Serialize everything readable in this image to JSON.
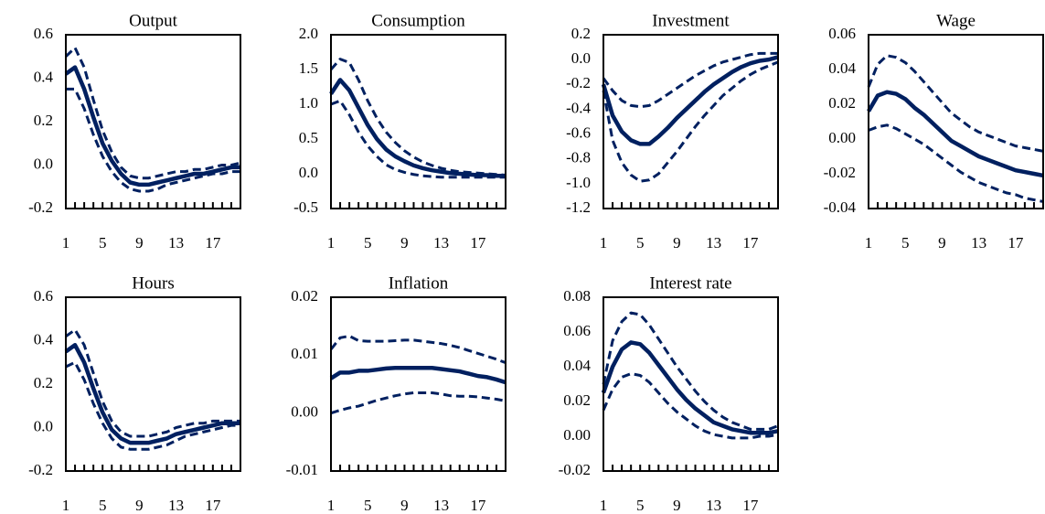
{
  "chart_data": [
    {
      "type": "line",
      "title": "Output",
      "x": [
        1,
        2,
        3,
        4,
        5,
        6,
        7,
        8,
        9,
        10,
        11,
        12,
        13,
        14,
        15,
        16,
        17,
        18,
        19,
        20
      ],
      "xlim": [
        1,
        20
      ],
      "xticks": [
        1,
        5,
        9,
        13,
        17
      ],
      "ylim": [
        -0.2,
        0.6
      ],
      "yticks": [
        -0.2,
        {
          "value": 0,
          "label": "0.0"
        },
        0.2,
        0.4,
        0.6
      ],
      "series": [
        {
          "color": "#002060",
          "dash": false,
          "values": [
            0.42,
            0.45,
            0.35,
            0.22,
            0.1,
            0.02,
            -0.04,
            -0.08,
            -0.09,
            -0.09,
            -0.08,
            -0.07,
            -0.06,
            -0.05,
            -0.04,
            -0.04,
            -0.03,
            -0.02,
            -0.01,
            -0.01
          ]
        },
        {
          "color": "#002060",
          "dash": true,
          "values": [
            0.5,
            0.54,
            0.45,
            0.3,
            0.16,
            0.06,
            -0.01,
            -0.05,
            -0.06,
            -0.06,
            -0.05,
            -0.04,
            -0.03,
            -0.03,
            -0.02,
            -0.02,
            -0.01,
            0,
            0,
            0.01
          ]
        },
        {
          "color": "#002060",
          "dash": true,
          "values": [
            0.35,
            0.35,
            0.26,
            0.14,
            0.04,
            -0.03,
            -0.08,
            -0.11,
            -0.12,
            -0.12,
            -0.11,
            -0.09,
            -0.08,
            -0.07,
            -0.06,
            -0.05,
            -0.04,
            -0.04,
            -0.03,
            -0.03
          ]
        }
      ]
    },
    {
      "type": "line",
      "title": "Consumption",
      "x": [
        1,
        2,
        3,
        4,
        5,
        6,
        7,
        8,
        9,
        10,
        11,
        12,
        13,
        14,
        15,
        16,
        17,
        18,
        19,
        20
      ],
      "xlim": [
        1,
        20
      ],
      "xticks": [
        1,
        5,
        9,
        13,
        17
      ],
      "ylim": [
        -0.5,
        2.0
      ],
      "yticks": [
        -0.5,
        {
          "value": 0,
          "label": "0.0"
        },
        0.5,
        {
          "value": 1,
          "label": "1.0"
        },
        1.5,
        {
          "value": 2,
          "label": "2.0"
        }
      ],
      "series": [
        {
          "color": "#002060",
          "dash": false,
          "values": [
            1.15,
            1.35,
            1.2,
            0.95,
            0.7,
            0.5,
            0.35,
            0.25,
            0.18,
            0.12,
            0.08,
            0.05,
            0.03,
            0.01,
            0,
            -0.01,
            -0.02,
            -0.02,
            -0.03,
            -0.03
          ]
        },
        {
          "color": "#002060",
          "dash": true,
          "values": [
            1.5,
            1.65,
            1.6,
            1.35,
            1.05,
            0.8,
            0.6,
            0.45,
            0.33,
            0.24,
            0.17,
            0.12,
            0.08,
            0.05,
            0.03,
            0.02,
            0.01,
            0,
            -0.01,
            -0.02
          ]
        },
        {
          "color": "#002060",
          "dash": true,
          "values": [
            1.0,
            1.05,
            0.85,
            0.6,
            0.4,
            0.25,
            0.13,
            0.06,
            0.02,
            -0.01,
            -0.03,
            -0.04,
            -0.05,
            -0.05,
            -0.05,
            -0.05,
            -0.05,
            -0.05,
            -0.05,
            -0.05
          ]
        }
      ]
    },
    {
      "type": "line",
      "title": "Investment",
      "x": [
        1,
        2,
        3,
        4,
        5,
        6,
        7,
        8,
        9,
        10,
        11,
        12,
        13,
        14,
        15,
        16,
        17,
        18,
        19,
        20
      ],
      "xlim": [
        1,
        20
      ],
      "xticks": [
        1,
        5,
        9,
        13,
        17
      ],
      "ylim": [
        -1.2,
        0.2
      ],
      "yticks": [
        -1.2,
        {
          "value": -1,
          "label": "-1.0"
        },
        -0.8,
        -0.6,
        -0.4,
        -0.2,
        {
          "value": 0,
          "label": "0.0"
        },
        0.2
      ],
      "series": [
        {
          "color": "#002060",
          "dash": false,
          "values": [
            -0.2,
            -0.45,
            -0.58,
            -0.65,
            -0.68,
            -0.68,
            -0.62,
            -0.55,
            -0.47,
            -0.4,
            -0.33,
            -0.26,
            -0.2,
            -0.15,
            -0.1,
            -0.06,
            -0.03,
            -0.01,
            0.0,
            0.02
          ]
        },
        {
          "color": "#002060",
          "dash": true,
          "values": [
            -0.15,
            -0.25,
            -0.33,
            -0.37,
            -0.38,
            -0.37,
            -0.33,
            -0.28,
            -0.23,
            -0.18,
            -0.13,
            -0.09,
            -0.05,
            -0.02,
            0.0,
            0.02,
            0.04,
            0.05,
            0.05,
            0.05
          ]
        },
        {
          "color": "#002060",
          "dash": true,
          "values": [
            -0.25,
            -0.65,
            -0.83,
            -0.93,
            -0.98,
            -0.97,
            -0.92,
            -0.83,
            -0.74,
            -0.64,
            -0.54,
            -0.45,
            -0.37,
            -0.29,
            -0.23,
            -0.17,
            -0.12,
            -0.08,
            -0.05,
            -0.02
          ]
        }
      ]
    },
    {
      "type": "line",
      "title": "Wage",
      "x": [
        1,
        2,
        3,
        4,
        5,
        6,
        7,
        8,
        9,
        10,
        11,
        12,
        13,
        14,
        15,
        16,
        17,
        18,
        19,
        20
      ],
      "xlim": [
        1,
        20
      ],
      "xticks": [
        1,
        5,
        9,
        13,
        17
      ],
      "ylim": [
        -0.04,
        0.06
      ],
      "yticks": [
        -0.04,
        -0.02,
        {
          "value": 0,
          "label": "0.00"
        },
        0.02,
        0.04,
        0.06
      ],
      "series": [
        {
          "color": "#002060",
          "dash": false,
          "values": [
            0.016,
            0.025,
            0.027,
            0.026,
            0.023,
            0.018,
            0.014,
            0.009,
            0.004,
            -0.001,
            -0.004,
            -0.007,
            -0.01,
            -0.012,
            -0.014,
            -0.016,
            -0.018,
            -0.019,
            -0.02,
            -0.021
          ]
        },
        {
          "color": "#002060",
          "dash": true,
          "values": [
            0.03,
            0.043,
            0.048,
            0.047,
            0.044,
            0.039,
            0.033,
            0.027,
            0.021,
            0.015,
            0.011,
            0.007,
            0.004,
            0.002,
            0,
            -0.002,
            -0.004,
            -0.005,
            -0.006,
            -0.007
          ]
        },
        {
          "color": "#002060",
          "dash": true,
          "values": [
            0.005,
            0.007,
            0.008,
            0.006,
            0.003,
            0,
            -0.003,
            -0.007,
            -0.011,
            -0.015,
            -0.019,
            -0.022,
            -0.025,
            -0.027,
            -0.029,
            -0.031,
            -0.032,
            -0.034,
            -0.035,
            -0.036
          ]
        }
      ]
    },
    {
      "type": "line",
      "title": "Hours",
      "x": [
        1,
        2,
        3,
        4,
        5,
        6,
        7,
        8,
        9,
        10,
        11,
        12,
        13,
        14,
        15,
        16,
        17,
        18,
        19,
        20
      ],
      "xlim": [
        1,
        20
      ],
      "xticks": [
        1,
        5,
        9,
        13,
        17
      ],
      "ylim": [
        -0.2,
        0.6
      ],
      "yticks": [
        -0.2,
        {
          "value": 0,
          "label": "0.0"
        },
        0.2,
        0.4,
        0.6
      ],
      "series": [
        {
          "color": "#002060",
          "dash": false,
          "values": [
            0.35,
            0.38,
            0.3,
            0.18,
            0.07,
            -0.01,
            -0.05,
            -0.07,
            -0.07,
            -0.07,
            -0.06,
            -0.05,
            -0.03,
            -0.02,
            -0.01,
            0,
            0.01,
            0.02,
            0.02,
            0.02
          ]
        },
        {
          "color": "#002060",
          "dash": true,
          "values": [
            0.42,
            0.45,
            0.38,
            0.25,
            0.12,
            0.03,
            -0.02,
            -0.04,
            -0.04,
            -0.04,
            -0.03,
            -0.02,
            0,
            0.01,
            0.02,
            0.02,
            0.03,
            0.03,
            0.03,
            0.03
          ]
        },
        {
          "color": "#002060",
          "dash": true,
          "values": [
            0.28,
            0.3,
            0.22,
            0.11,
            0.02,
            -0.05,
            -0.09,
            -0.1,
            -0.1,
            -0.1,
            -0.09,
            -0.08,
            -0.06,
            -0.04,
            -0.03,
            -0.02,
            -0.01,
            0,
            0.01,
            0.01
          ]
        }
      ]
    },
    {
      "type": "line",
      "title": "Inflation",
      "x": [
        1,
        2,
        3,
        4,
        5,
        6,
        7,
        8,
        9,
        10,
        11,
        12,
        13,
        14,
        15,
        16,
        17,
        18,
        19,
        20
      ],
      "xlim": [
        1,
        20
      ],
      "xticks": [
        1,
        5,
        9,
        13,
        17
      ],
      "ylim": [
        -0.01,
        0.02
      ],
      "yticks": [
        -0.01,
        {
          "value": 0,
          "label": "0.00"
        },
        0.01,
        0.02
      ],
      "series": [
        {
          "color": "#002060",
          "dash": false,
          "values": [
            0.006,
            0.007,
            0.007,
            0.0073,
            0.0073,
            0.0075,
            0.0077,
            0.0078,
            0.0078,
            0.0078,
            0.0078,
            0.0078,
            0.0076,
            0.0074,
            0.0072,
            0.0068,
            0.0064,
            0.0062,
            0.0058,
            0.0053
          ]
        },
        {
          "color": "#002060",
          "dash": true,
          "values": [
            0.011,
            0.013,
            0.0133,
            0.0125,
            0.0124,
            0.0124,
            0.0124,
            0.0125,
            0.0126,
            0.0126,
            0.0124,
            0.0122,
            0.012,
            0.0117,
            0.0113,
            0.0108,
            0.0103,
            0.0098,
            0.0093,
            0.0087
          ]
        },
        {
          "color": "#002060",
          "dash": true,
          "values": [
            0.0,
            0.0005,
            0.0009,
            0.0012,
            0.0017,
            0.0022,
            0.0026,
            0.003,
            0.0033,
            0.0035,
            0.0035,
            0.0035,
            0.0033,
            0.003,
            0.0029,
            0.0029,
            0.0028,
            0.0026,
            0.0024,
            0.0021
          ]
        }
      ]
    },
    {
      "type": "line",
      "title": "Interest rate",
      "x": [
        1,
        2,
        3,
        4,
        5,
        6,
        7,
        8,
        9,
        10,
        11,
        12,
        13,
        14,
        15,
        16,
        17,
        18,
        19,
        20
      ],
      "xlim": [
        1,
        20
      ],
      "xticks": [
        1,
        5,
        9,
        13,
        17
      ],
      "ylim": [
        -0.02,
        0.08
      ],
      "yticks": [
        -0.02,
        {
          "value": 0,
          "label": "0.00"
        },
        0.02,
        0.04,
        0.06,
        0.08
      ],
      "series": [
        {
          "color": "#002060",
          "dash": false,
          "values": [
            0.025,
            0.04,
            0.05,
            0.054,
            0.053,
            0.048,
            0.041,
            0.034,
            0.027,
            0.021,
            0.016,
            0.012,
            0.008,
            0.006,
            0.004,
            0.003,
            0.002,
            0.002,
            0.002,
            0.003
          ]
        },
        {
          "color": "#002060",
          "dash": true,
          "values": [
            0.03,
            0.055,
            0.066,
            0.071,
            0.07,
            0.064,
            0.056,
            0.048,
            0.04,
            0.033,
            0.026,
            0.02,
            0.015,
            0.011,
            0.008,
            0.006,
            0.004,
            0.004,
            0.004,
            0.006
          ]
        },
        {
          "color": "#002060",
          "dash": true,
          "values": [
            0.015,
            0.027,
            0.034,
            0.036,
            0.035,
            0.031,
            0.025,
            0.019,
            0.014,
            0.01,
            0.006,
            0.003,
            0.001,
            0,
            -0.001,
            -0.001,
            -0.001,
            0,
            0,
            0.001
          ]
        }
      ]
    }
  ]
}
